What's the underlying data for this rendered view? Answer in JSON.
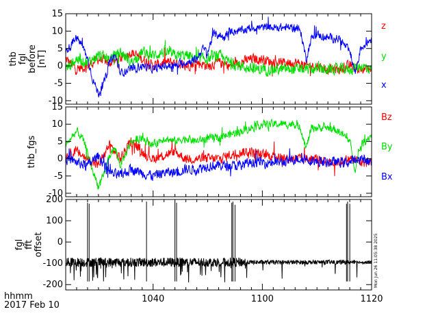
{
  "chart_data": {
    "type": "line",
    "time_unit": "minutes since 10:24 UT",
    "x_range": [
      0,
      56
    ],
    "x_ticks": [
      {
        "t": 16,
        "label": "1040"
      },
      {
        "t": 36,
        "label": "1100"
      },
      {
        "t": 56,
        "label": "1120"
      }
    ],
    "x_label_lines": [
      "hhmm",
      "2017 Feb 10"
    ],
    "timestamp": "Mon Jun 26 11:05:38 2025",
    "panels": [
      {
        "name": "fgl-before",
        "ylabel_lines": [
          "thb",
          "fgl",
          "before",
          "[nT]"
        ],
        "ylim": [
          -11,
          15
        ],
        "yticks": [
          -10,
          -5,
          0,
          5,
          10,
          15
        ],
        "series": [
          {
            "name": "z",
            "color": "#ff0000",
            "points": [
              [
                0,
                2
              ],
              [
                2,
                -1
              ],
              [
                4,
                0
              ],
              [
                6,
                2
              ],
              [
                8,
                1
              ],
              [
                10,
                2
              ],
              [
                12,
                4
              ],
              [
                14,
                2
              ],
              [
                16,
                0
              ],
              [
                18,
                1
              ],
              [
                20,
                1
              ],
              [
                22,
                0
              ],
              [
                24,
                1
              ],
              [
                26,
                0
              ],
              [
                28,
                1
              ],
              [
                30,
                0
              ],
              [
                32,
                1
              ],
              [
                34,
                2
              ],
              [
                36,
                2
              ],
              [
                38,
                1
              ],
              [
                40,
                1
              ],
              [
                42,
                1
              ],
              [
                44,
                0
              ],
              [
                46,
                0
              ],
              [
                48,
                -1
              ],
              [
                50,
                -1
              ],
              [
                52,
                0
              ],
              [
                54,
                -1
              ],
              [
                56,
                -1
              ]
            ],
            "noise": 2.0
          },
          {
            "name": "y",
            "color": "#00e000",
            "points": [
              [
                0,
                -1
              ],
              [
                2,
                2
              ],
              [
                4,
                1
              ],
              [
                6,
                3
              ],
              [
                8,
                2
              ],
              [
                10,
                4
              ],
              [
                12,
                1
              ],
              [
                14,
                4
              ],
              [
                16,
                3
              ],
              [
                18,
                4
              ],
              [
                20,
                3
              ],
              [
                22,
                3
              ],
              [
                24,
                2
              ],
              [
                26,
                2
              ],
              [
                28,
                3
              ],
              [
                30,
                1
              ],
              [
                32,
                0
              ],
              [
                34,
                -1
              ],
              [
                36,
                -1
              ],
              [
                38,
                -1
              ],
              [
                40,
                -1
              ],
              [
                42,
                -1
              ],
              [
                44,
                -1
              ],
              [
                46,
                -1
              ],
              [
                48,
                -1
              ],
              [
                50,
                -1
              ],
              [
                52,
                -1
              ],
              [
                54,
                0
              ],
              [
                56,
                -1
              ]
            ],
            "noise": 2.2
          },
          {
            "name": "x",
            "color": "#0000ff",
            "points": [
              [
                0,
                4
              ],
              [
                2,
                8
              ],
              [
                3,
                6
              ],
              [
                4,
                2
              ],
              [
                5,
                -4
              ],
              [
                6,
                -8
              ],
              [
                7,
                -5
              ],
              [
                8,
                1
              ],
              [
                9,
                3
              ],
              [
                10,
                -2
              ],
              [
                12,
                -1
              ],
              [
                14,
                0
              ],
              [
                16,
                -1
              ],
              [
                18,
                0
              ],
              [
                20,
                0
              ],
              [
                22,
                1
              ],
              [
                24,
                2
              ],
              [
                25,
                5
              ],
              [
                26,
                4
              ],
              [
                27,
                9
              ],
              [
                28,
                9
              ],
              [
                29,
                8
              ],
              [
                30,
                10
              ],
              [
                32,
                10
              ],
              [
                34,
                11
              ],
              [
                36,
                11
              ],
              [
                38,
                11
              ],
              [
                40,
                11
              ],
              [
                42,
                11
              ],
              [
                43,
                10
              ],
              [
                44,
                2
              ],
              [
                45,
                8
              ],
              [
                46,
                9
              ],
              [
                48,
                8
              ],
              [
                50,
                8
              ],
              [
                52,
                4
              ],
              [
                53,
                -2
              ],
              [
                54,
                5
              ],
              [
                56,
                8
              ]
            ],
            "noise": 1.6
          }
        ],
        "legend": [
          "z",
          "y",
          "x"
        ]
      },
      {
        "name": "fgs",
        "ylabel_lines": [
          "thb_fgs"
        ],
        "ylim": [
          -11,
          15
        ],
        "yticks": [
          -10,
          -5,
          0,
          5,
          10,
          15
        ],
        "series": [
          {
            "name": "Bz",
            "color": "#ff0000",
            "points": [
              [
                0,
                1
              ],
              [
                2,
                2
              ],
              [
                4,
                0
              ],
              [
                6,
                -2
              ],
              [
                8,
                4
              ],
              [
                10,
                0
              ],
              [
                12,
                5
              ],
              [
                14,
                2
              ],
              [
                16,
                0
              ],
              [
                18,
                1
              ],
              [
                20,
                2
              ],
              [
                22,
                0
              ],
              [
                24,
                0
              ],
              [
                26,
                0
              ],
              [
                28,
                0
              ],
              [
                30,
                1
              ],
              [
                32,
                2
              ],
              [
                34,
                2
              ],
              [
                36,
                1
              ],
              [
                38,
                1
              ],
              [
                40,
                0
              ],
              [
                42,
                0
              ],
              [
                44,
                0
              ],
              [
                46,
                0
              ],
              [
                48,
                -1
              ],
              [
                50,
                -1
              ],
              [
                52,
                0
              ],
              [
                54,
                -1
              ],
              [
                56,
                -1
              ]
            ],
            "noise": 2.0
          },
          {
            "name": "By",
            "color": "#00e000",
            "points": [
              [
                0,
                4
              ],
              [
                2,
                8
              ],
              [
                3,
                6
              ],
              [
                4,
                2
              ],
              [
                5,
                -4
              ],
              [
                6,
                -8
              ],
              [
                7,
                -5
              ],
              [
                8,
                1
              ],
              [
                9,
                3
              ],
              [
                10,
                -2
              ],
              [
                12,
                5
              ],
              [
                14,
                6
              ],
              [
                16,
                4
              ],
              [
                18,
                6
              ],
              [
                20,
                5
              ],
              [
                22,
                6
              ],
              [
                24,
                5
              ],
              [
                26,
                6
              ],
              [
                28,
                6
              ],
              [
                30,
                7
              ],
              [
                32,
                8
              ],
              [
                34,
                9
              ],
              [
                36,
                10
              ],
              [
                38,
                10
              ],
              [
                40,
                10
              ],
              [
                42,
                10
              ],
              [
                43,
                9
              ],
              [
                44,
                3
              ],
              [
                45,
                9
              ],
              [
                46,
                9
              ],
              [
                48,
                9
              ],
              [
                50,
                8
              ],
              [
                52,
                5
              ],
              [
                53,
                -3
              ],
              [
                54,
                4
              ],
              [
                56,
                7
              ]
            ],
            "noise": 1.6
          },
          {
            "name": "Bx",
            "color": "#0000ff",
            "points": [
              [
                0,
                0
              ],
              [
                2,
                -1
              ],
              [
                4,
                -2
              ],
              [
                6,
                1
              ],
              [
                8,
                -4
              ],
              [
                10,
                -5
              ],
              [
                12,
                -3
              ],
              [
                14,
                -4
              ],
              [
                16,
                -5
              ],
              [
                18,
                -4
              ],
              [
                20,
                -4
              ],
              [
                22,
                -3
              ],
              [
                24,
                -3
              ],
              [
                26,
                -2
              ],
              [
                28,
                -2
              ],
              [
                30,
                -2
              ],
              [
                32,
                -2
              ],
              [
                34,
                -1
              ],
              [
                36,
                -1
              ],
              [
                38,
                -1
              ],
              [
                40,
                -1
              ],
              [
                42,
                0
              ],
              [
                44,
                0
              ],
              [
                46,
                -1
              ],
              [
                48,
                -1
              ],
              [
                50,
                -1
              ],
              [
                52,
                -1
              ],
              [
                54,
                0
              ],
              [
                56,
                -1
              ]
            ],
            "noise": 2.0
          }
        ],
        "legend": [
          "Bz",
          "By",
          "Bx"
        ]
      },
      {
        "name": "offset",
        "ylabel_lines": [
          "fgl",
          "fft",
          "offset"
        ],
        "ylim": [
          -225,
          200
        ],
        "yticks": [
          -200,
          -100,
          0,
          100,
          200
        ],
        "baseline": -95,
        "series": [
          {
            "name": "offset",
            "color": "#000000",
            "spikes": [
              [
                4,
                185
              ],
              [
                4.3,
                180
              ],
              [
                14.8,
                190
              ],
              [
                20,
                190
              ],
              [
                20.3,
                185
              ],
              [
                30.4,
                185
              ],
              [
                30.6,
                190
              ],
              [
                31,
                175
              ],
              [
                51.4,
                180
              ],
              [
                51.6,
                190
              ],
              [
                52,
                180
              ]
            ]
          }
        ],
        "legend": []
      }
    ]
  }
}
